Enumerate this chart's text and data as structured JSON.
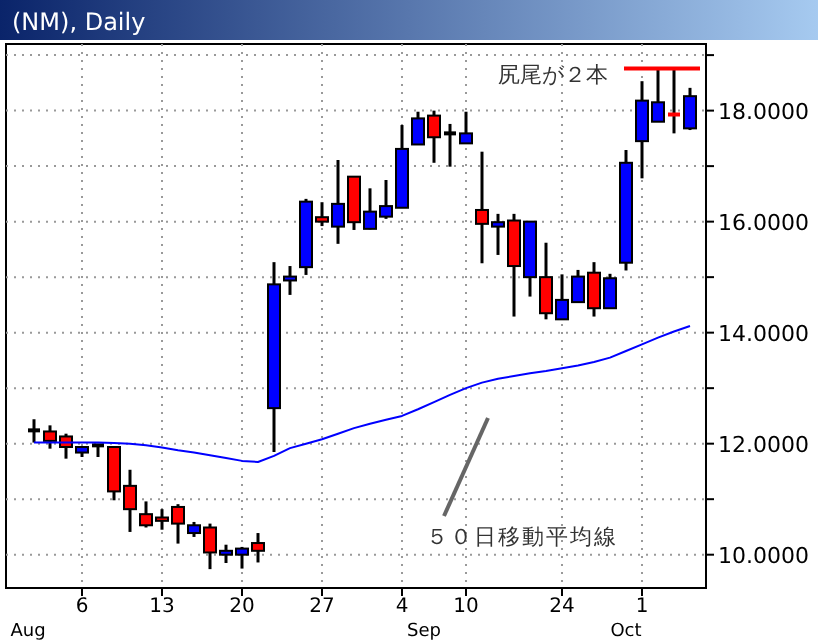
{
  "chart_data": {
    "type": "candlestick",
    "title": "(NM), Daily",
    "categories": [
      null,
      null,
      null,
      "6",
      null,
      null,
      null,
      null,
      "13",
      null,
      null,
      null,
      null,
      "20",
      null,
      null,
      null,
      null,
      "27",
      null,
      null,
      null,
      null,
      "4",
      null,
      null,
      null,
      "10",
      null,
      null,
      null,
      null,
      null,
      "24",
      null,
      null,
      null,
      null,
      "1",
      null,
      null,
      null
    ],
    "series": [
      {
        "type": "candlestick",
        "ohlc": [
          [
            12.24,
            12.44,
            12.02,
            12.24
          ],
          [
            12.22,
            12.33,
            11.91,
            12.05
          ],
          [
            12.13,
            12.18,
            11.73,
            11.94
          ],
          [
            11.84,
            11.94,
            11.76,
            11.94
          ],
          [
            11.97,
            11.98,
            11.76,
            11.97
          ],
          [
            11.94,
            11.94,
            10.98,
            11.14
          ],
          [
            11.24,
            11.53,
            10.41,
            10.82
          ],
          [
            10.73,
            10.96,
            10.49,
            10.53
          ],
          [
            10.67,
            10.82,
            10.45,
            10.61
          ],
          [
            10.86,
            10.91,
            10.2,
            10.56
          ],
          [
            10.39,
            10.59,
            10.32,
            10.53
          ],
          [
            10.49,
            10.56,
            9.74,
            10.04
          ],
          [
            10.0,
            10.18,
            9.85,
            10.07
          ],
          [
            10.0,
            10.14,
            9.75,
            10.11
          ],
          [
            10.21,
            10.39,
            9.86,
            10.07
          ],
          [
            12.64,
            15.27,
            11.85,
            14.87
          ],
          [
            14.94,
            15.2,
            14.68,
            15.01
          ],
          [
            15.18,
            16.41,
            15.04,
            16.36
          ],
          [
            16.08,
            16.35,
            15.92,
            16.0
          ],
          [
            15.91,
            17.11,
            15.6,
            16.32
          ],
          [
            16.81,
            16.81,
            15.85,
            15.99
          ],
          [
            15.87,
            16.6,
            15.86,
            16.18
          ],
          [
            16.09,
            16.75,
            16.05,
            16.28
          ],
          [
            16.25,
            17.74,
            16.25,
            17.31
          ],
          [
            17.39,
            17.98,
            17.39,
            17.86
          ],
          [
            17.91,
            18.0,
            17.06,
            17.52
          ],
          [
            17.59,
            17.76,
            16.99,
            17.59
          ],
          [
            17.41,
            17.98,
            17.41,
            17.59
          ],
          [
            16.21,
            17.26,
            15.25,
            15.96
          ],
          [
            15.91,
            16.14,
            15.4,
            15.99
          ],
          [
            16.02,
            16.14,
            14.29,
            15.2
          ],
          [
            15.0,
            16.0,
            14.65,
            16.0
          ],
          [
            15.0,
            15.62,
            14.24,
            14.35
          ],
          [
            14.24,
            15.05,
            14.24,
            14.59
          ],
          [
            14.55,
            15.13,
            14.55,
            15.01
          ],
          [
            15.08,
            15.27,
            14.29,
            14.44
          ],
          [
            14.44,
            15.06,
            14.44,
            14.98
          ],
          [
            15.26,
            17.29,
            15.12,
            17.06
          ],
          [
            17.45,
            18.53,
            16.78,
            18.18
          ],
          [
            17.8,
            18.76,
            17.8,
            18.15
          ],
          [
            17.93,
            18.76,
            17.59,
            17.88
          ],
          [
            17.68,
            18.41,
            17.65,
            18.26
          ]
        ],
        "colors": [
          "#000000",
          "#ff0000",
          "#ff0000",
          "#0000ff",
          "#000000",
          "#ff0000",
          "#ff0000",
          "#ff0000",
          "#ff0000",
          "#ff0000",
          "#0000ff",
          "#ff0000",
          "#0000ff",
          "#0000ff",
          "#ff0000",
          "#0000ff",
          "#0000ff",
          "#0000ff",
          "#ff0000",
          "#0000ff",
          "#ff0000",
          "#0000ff",
          "#0000ff",
          "#0000ff",
          "#0000ff",
          "#ff0000",
          "#000000",
          "#0000ff",
          "#ff0000",
          "#0000ff",
          "#ff0000",
          "#0000ff",
          "#ff0000",
          "#0000ff",
          "#0000ff",
          "#ff0000",
          "#0000ff",
          "#0000ff",
          "#0000ff",
          "#0000ff",
          "#ff0000",
          "#0000ff"
        ]
      },
      {
        "type": "line",
        "color": "#0000ff",
        "values": [
          12.02,
          12.02,
          12.02,
          12.02,
          12.02,
          12.01,
          12.0,
          11.97,
          11.93,
          11.88,
          11.84,
          11.79,
          11.74,
          11.69,
          11.67,
          11.78,
          11.92,
          12.0,
          12.08,
          12.18,
          12.28,
          12.36,
          12.43,
          12.5,
          12.62,
          12.75,
          12.88,
          13.0,
          13.1,
          13.17,
          13.22,
          13.27,
          13.31,
          13.36,
          13.41,
          13.47,
          13.55,
          13.67,
          13.79,
          13.91,
          14.02,
          14.12
        ]
      }
    ],
    "ylim": [
      9.4,
      19.2
    ],
    "yticks": [
      {
        "value": 10,
        "label": "10.0000"
      },
      {
        "value": 11,
        "label": null
      },
      {
        "value": 12,
        "label": "12.0000"
      },
      {
        "value": 13,
        "label": null
      },
      {
        "value": 14,
        "label": "14.0000"
      },
      {
        "value": 15,
        "label": null
      },
      {
        "value": 16,
        "label": "16.0000"
      },
      {
        "value": 17,
        "label": null
      },
      {
        "value": 18,
        "label": "18.0000"
      },
      {
        "value": 19,
        "label": null
      }
    ],
    "grid": true,
    "ref_lines": [
      {
        "axis": "y",
        "value": 18.76,
        "label": "尻尾が２本",
        "color": "#ff0000"
      }
    ],
    "annotations": [
      "５０日移動平均線",
      "Aug",
      "Sep",
      "Oct"
    ]
  }
}
